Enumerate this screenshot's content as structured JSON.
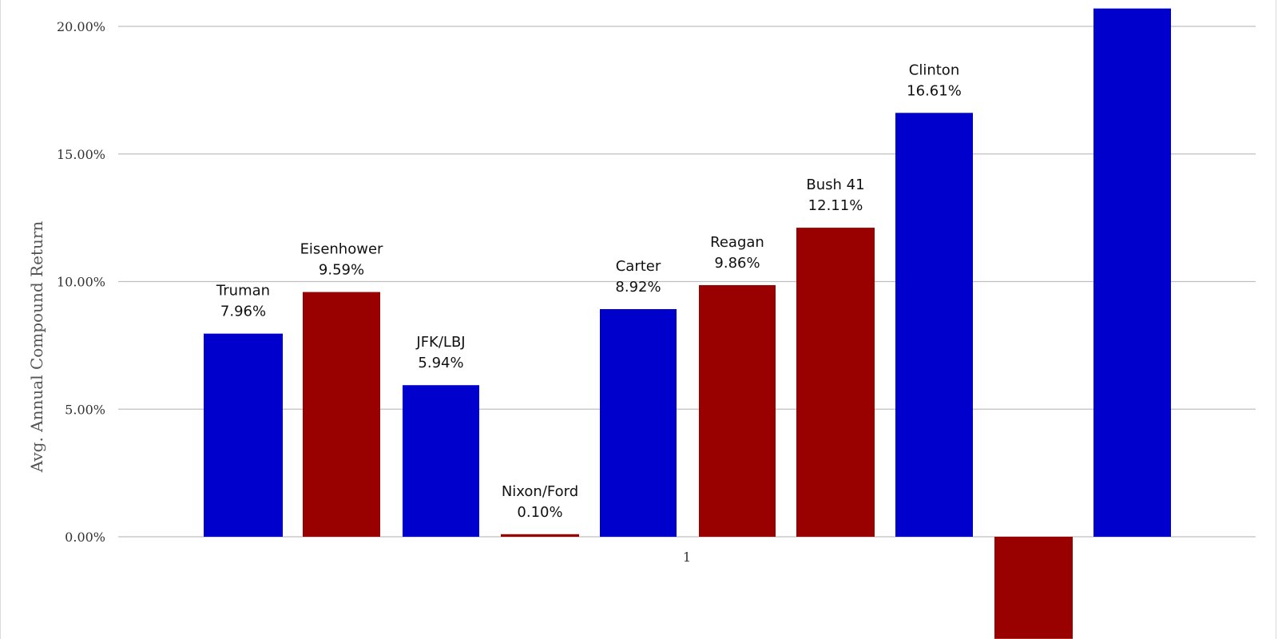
{
  "chart_data": {
    "type": "bar",
    "title": "",
    "xlabel": "",
    "ylabel": "Avg. Annual Compound Return",
    "x_tick_label": "1",
    "y_ticks": [
      "0.00%",
      "5.00%",
      "10.00%",
      "15.00%",
      "20.00%"
    ],
    "ylim": [
      -4.0,
      21.0
    ],
    "grid": true,
    "legend": "none",
    "categories": [
      "Truman",
      "Eisenhower",
      "JFK/LBJ",
      "Nixon/Ford",
      "Carter",
      "Reagan",
      "Bush 41",
      "Clinton",
      "",
      ""
    ],
    "values": [
      7.96,
      9.59,
      5.94,
      0.1,
      8.92,
      9.86,
      12.11,
      16.61,
      -4.0,
      20.7
    ],
    "value_labels": [
      "7.96%",
      "9.59%",
      "5.94%",
      "0.10%",
      "8.92%",
      "9.86%",
      "12.11%",
      "16.61%",
      "",
      ""
    ],
    "party": [
      "D",
      "R",
      "D",
      "R",
      "D",
      "R",
      "R",
      "D",
      "R",
      "D"
    ],
    "colors": {
      "D": "#0000cc",
      "R": "#990000",
      "grid": "#bfbfbf"
    }
  }
}
